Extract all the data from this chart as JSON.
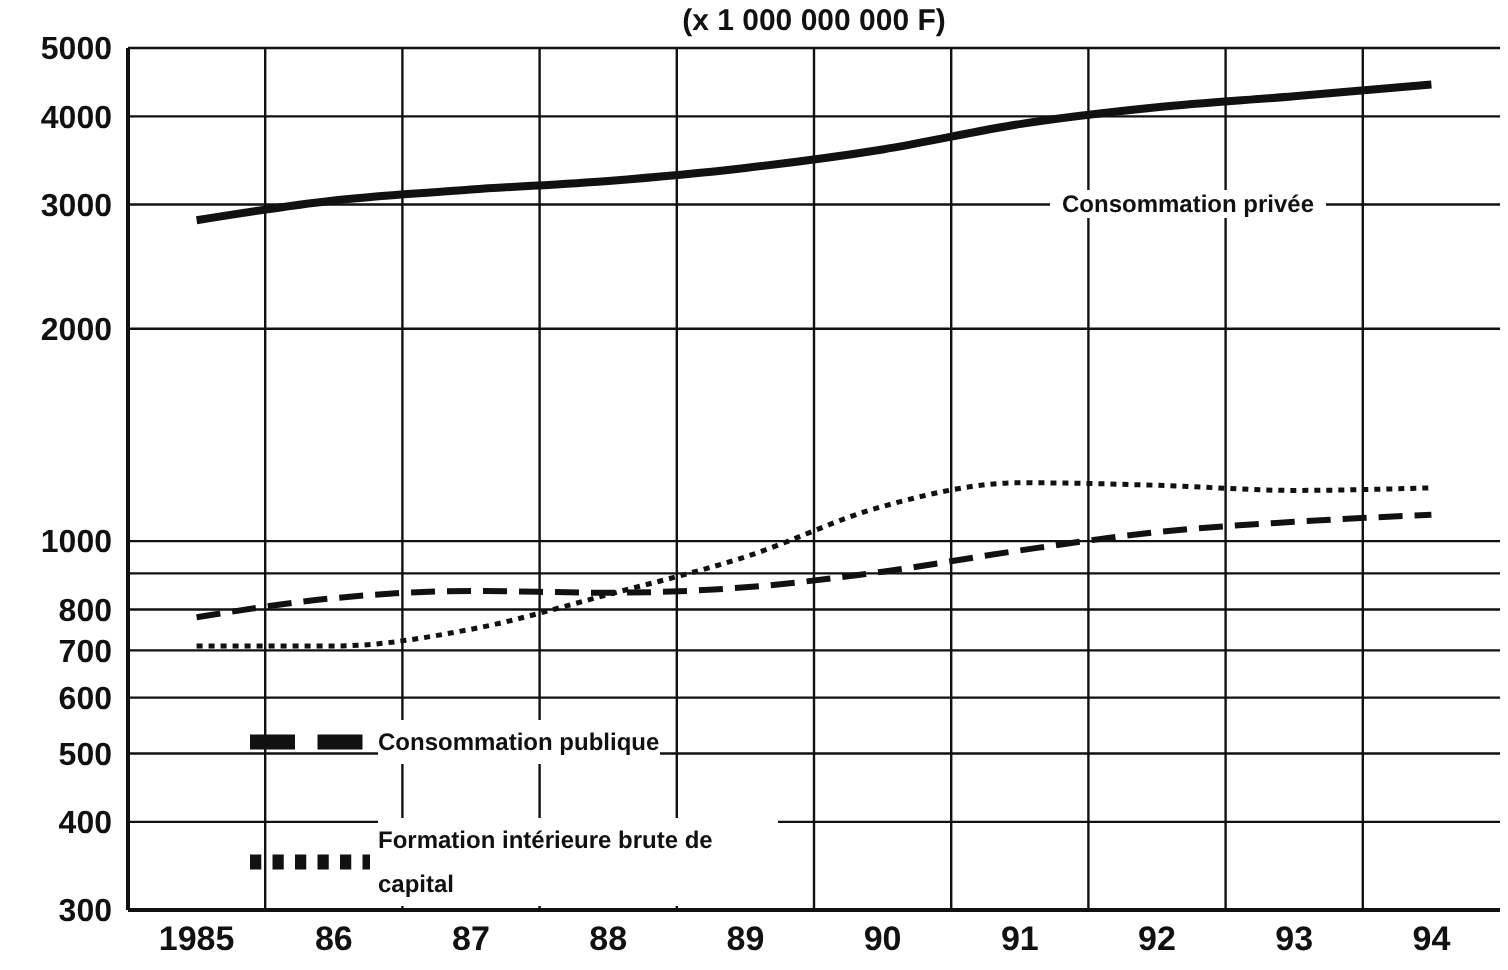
{
  "chart_data": {
    "type": "line",
    "title": "(x 1 000 000 000 F)",
    "categories": [
      "1985",
      "86",
      "87",
      "88",
      "89",
      "90",
      "91",
      "92",
      "93",
      "94"
    ],
    "series": [
      {
        "name": "Consommation privée",
        "color": "#111111",
        "line_style": "solid",
        "values": [
          2850,
          3040,
          3150,
          3240,
          3380,
          3590,
          3900,
          4120,
          4270,
          4440
        ]
      },
      {
        "name": "Formation intérieure brute de capital",
        "color": "#111111",
        "line_style": "dotted",
        "values": [
          710,
          710,
          750,
          840,
          950,
          1120,
          1210,
          1200,
          1180,
          1190
        ]
      },
      {
        "name": "Consommation publique",
        "color": "#111111",
        "line_style": "dashed",
        "values": [
          780,
          830,
          850,
          845,
          860,
          905,
          970,
          1030,
          1065,
          1090
        ]
      }
    ],
    "log": "y",
    "ylim": [
      300,
      5000
    ],
    "yticks": [
      300,
      400,
      500,
      600,
      700,
      800,
      {
        "value": 900,
        "label": null
      },
      1000,
      2000,
      3000,
      4000,
      5000
    ],
    "grid": true,
    "legend": "bottom left",
    "marker": "none"
  }
}
